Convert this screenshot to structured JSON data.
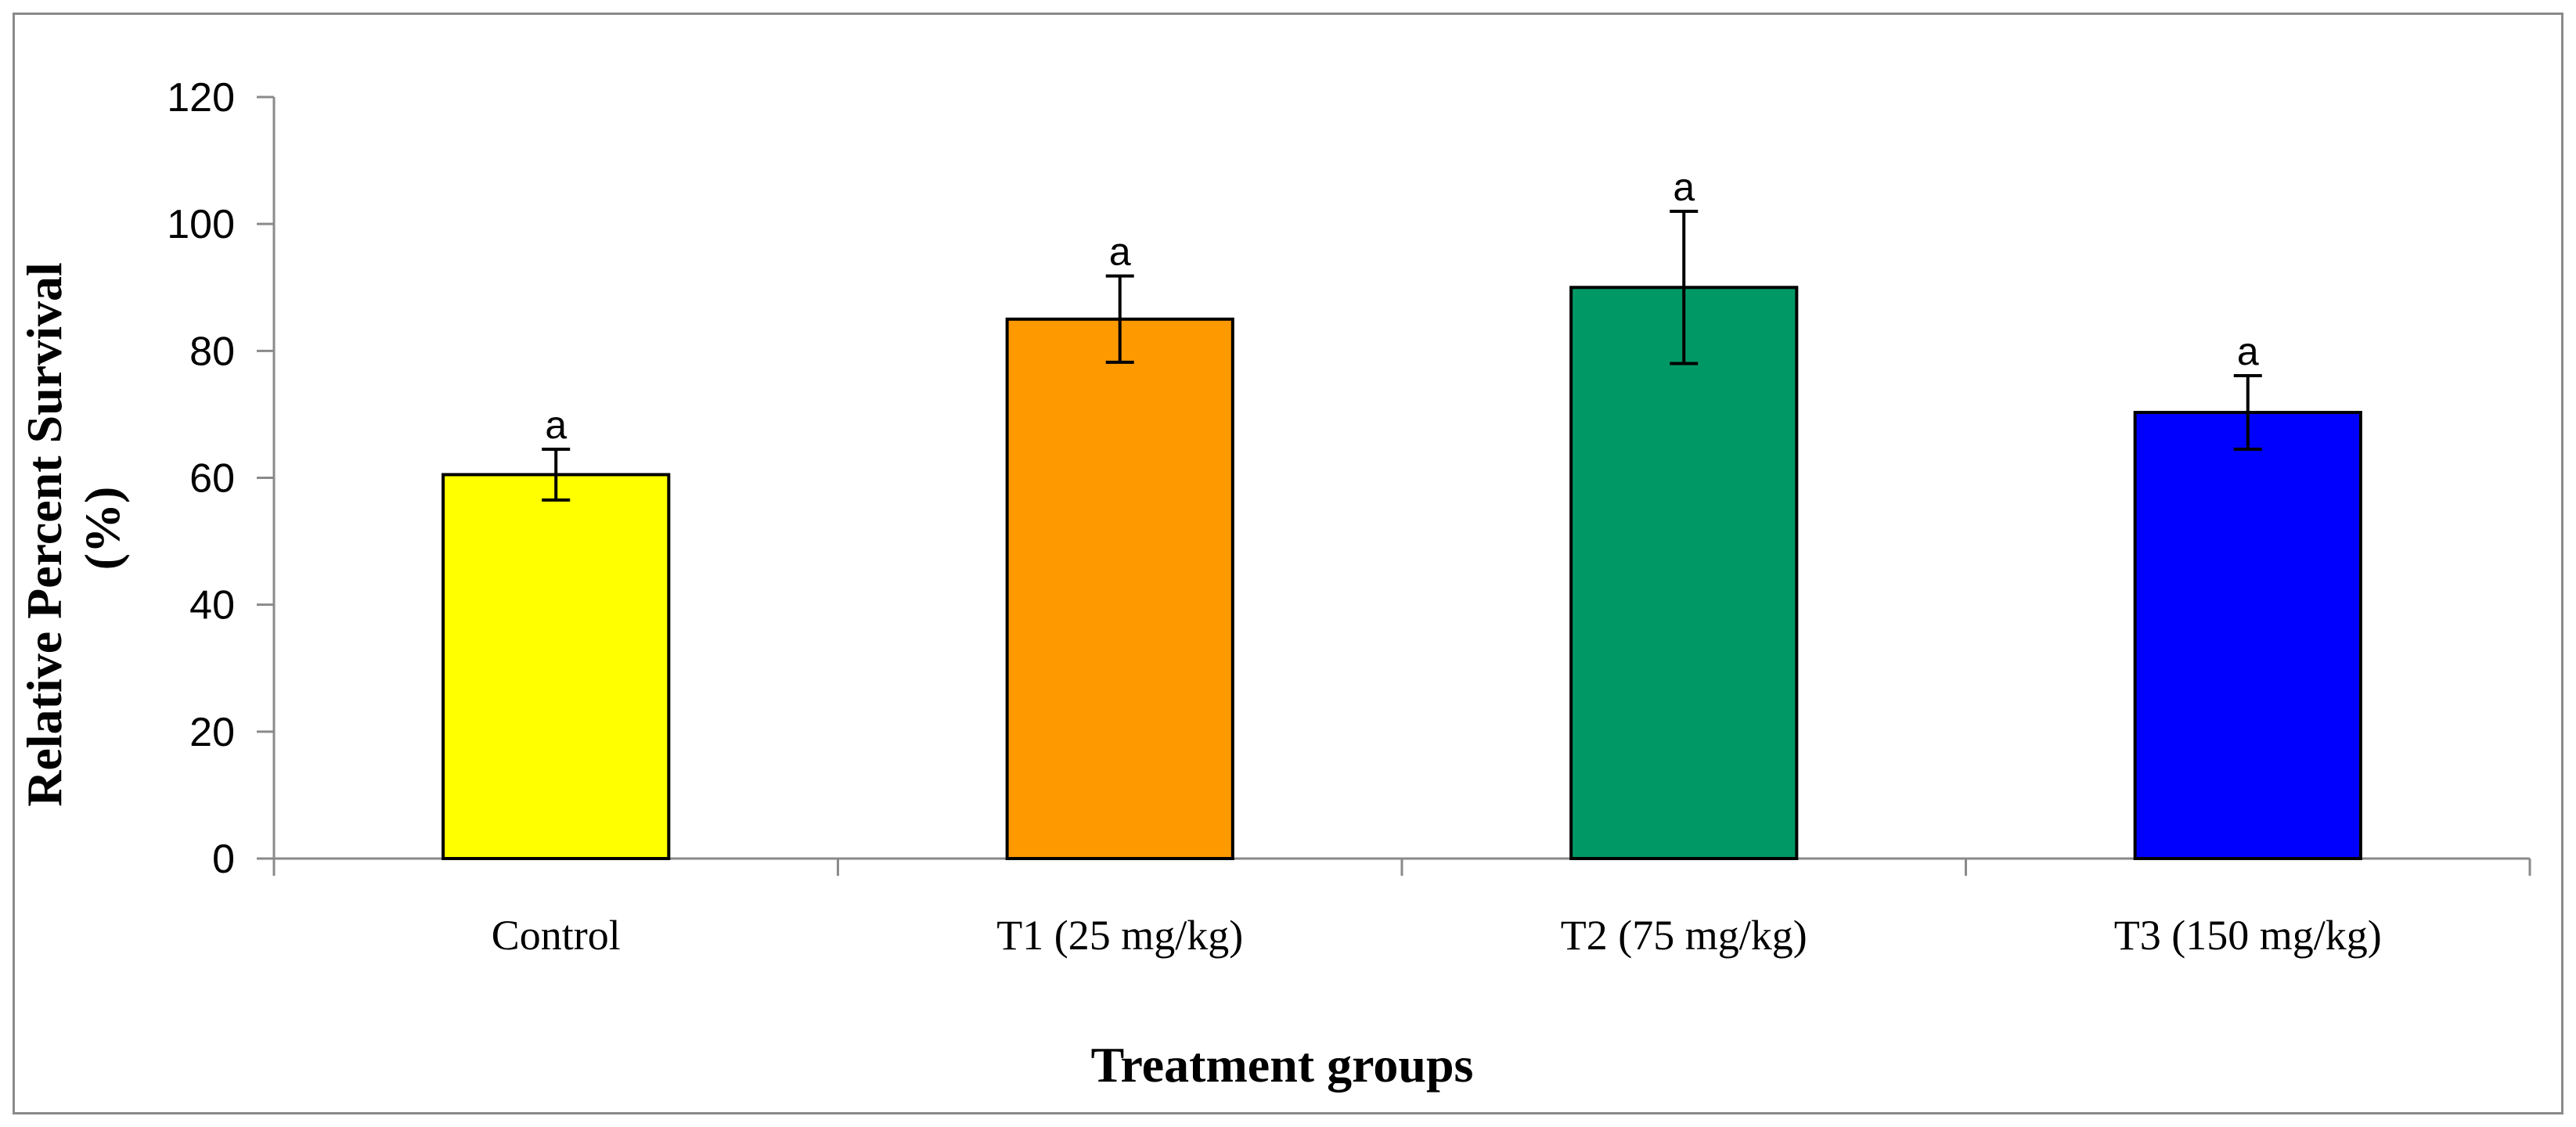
{
  "chart_data": {
    "type": "bar",
    "title": "",
    "xlabel": "Treatment groups",
    "ylabel_lines": [
      "Relative Percent Survival",
      "(%)"
    ],
    "ylim": [
      0,
      120
    ],
    "yticks": [
      0,
      20,
      40,
      60,
      80,
      100,
      120
    ],
    "categories": [
      "Control",
      "T1 (25 mg/kg)",
      "T2 (75 mg/kg)",
      "T3 (150 mg/kg)"
    ],
    "values": [
      60.5,
      85,
      90,
      70.3
    ],
    "errors": [
      4,
      6.8,
      12,
      5.8
    ],
    "significance": [
      "a",
      "a",
      "a",
      "a"
    ],
    "colors": [
      "#ffff00",
      "#ff9900",
      "#009966",
      "#0000ff"
    ],
    "grid": false,
    "legend": "none"
  }
}
